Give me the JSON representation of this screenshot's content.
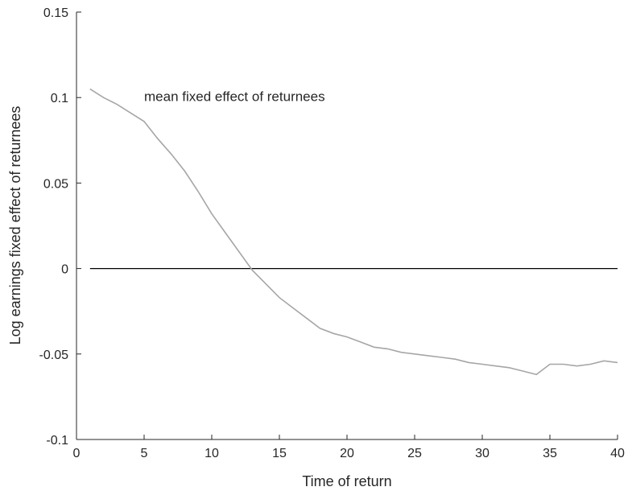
{
  "chart_data": {
    "type": "line",
    "title": "",
    "xlabel": "Time of return",
    "ylabel": "Log earnings fixed effect of returnees",
    "xlim": [
      0,
      40
    ],
    "ylim": [
      -0.1,
      0.15
    ],
    "xticks": [
      0,
      5,
      10,
      15,
      20,
      25,
      30,
      35,
      40
    ],
    "xtick_labels": [
      "0",
      "5",
      "10",
      "15",
      "20",
      "25",
      "30",
      "35",
      "40"
    ],
    "yticks": [
      -0.1,
      -0.05,
      0,
      0.05,
      0.1,
      0.15
    ],
    "ytick_labels": [
      "-0.1",
      "-0.05",
      "0",
      "0.05",
      "0.1",
      "0.15"
    ],
    "grid": false,
    "annotation": {
      "text": "mean fixed effect of returnees",
      "x": 5,
      "y": 0.098
    },
    "reference_line": {
      "y": 0,
      "x_start": 1,
      "x_end": 40,
      "color": "#000000"
    },
    "series": [
      {
        "color": "#a6a6a6",
        "x": [
          1,
          2,
          3,
          4,
          5,
          6,
          7,
          8,
          9,
          10,
          11,
          12,
          13,
          14,
          15,
          16,
          17,
          18,
          19,
          20,
          21,
          22,
          23,
          24,
          25,
          26,
          27,
          28,
          29,
          30,
          31,
          32,
          33,
          34,
          35,
          36,
          37,
          38,
          39,
          40
        ],
        "y": [
          0.105,
          0.1,
          0.096,
          0.091,
          0.086,
          0.076,
          0.067,
          0.057,
          0.045,
          0.032,
          0.021,
          0.01,
          -0.001,
          -0.009,
          -0.017,
          -0.023,
          -0.029,
          -0.035,
          -0.038,
          -0.04,
          -0.043,
          -0.046,
          -0.047,
          -0.049,
          -0.05,
          -0.051,
          -0.052,
          -0.053,
          -0.055,
          -0.056,
          -0.057,
          -0.058,
          -0.06,
          -0.062,
          -0.056,
          -0.056,
          -0.057,
          -0.056,
          -0.054,
          -0.055
        ]
      }
    ]
  }
}
